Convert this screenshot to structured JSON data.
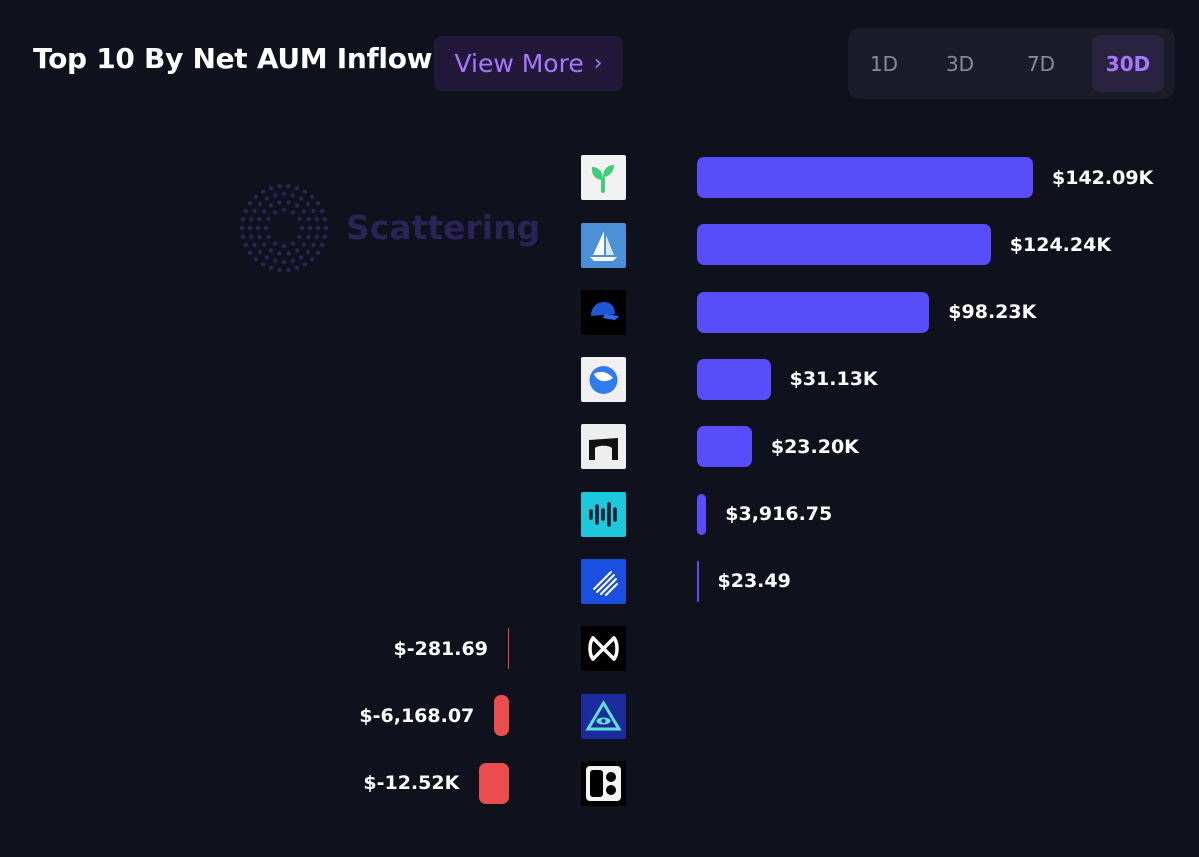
{
  "header": {
    "title": "Top 10 By Net AUM Inflow",
    "view_more_label": "View More",
    "view_more_icon": "chevron-right-icon"
  },
  "periods": {
    "tabs": [
      "1D",
      "3D",
      "7D",
      "30D"
    ],
    "active": "30D"
  },
  "watermark": {
    "text": "Scattering"
  },
  "colors": {
    "positive": "#574dfa",
    "negative": "#e94d4d",
    "accent": "#a977ff",
    "background": "#0f111c"
  },
  "chart_data": {
    "type": "bar",
    "orientation": "horizontal-diverging",
    "title": "Top 10 By Net AUM Inflow",
    "values": [
      142090,
      124240,
      98230,
      31130,
      23200,
      3916.75,
      23.49,
      -281.69,
      -6168.07,
      -12520
    ],
    "value_labels": [
      "$142.09K",
      "$124.24K",
      "$98.23K",
      "$31.13K",
      "$23.20K",
      "$3,916.75",
      "$23.49",
      "$-281.69",
      "$-6,168.07",
      "$-12.52K"
    ],
    "icons": [
      "green-sprout-icon",
      "sailboat-icon",
      "blue-cap-icon",
      "blue-drop-circle-icon",
      "bridge-arch-icon",
      "cyan-waveform-icon",
      "blue-stripes-circle-icon",
      "x-loop-icon",
      "eye-triangle-icon",
      "black-dots-icon"
    ]
  }
}
